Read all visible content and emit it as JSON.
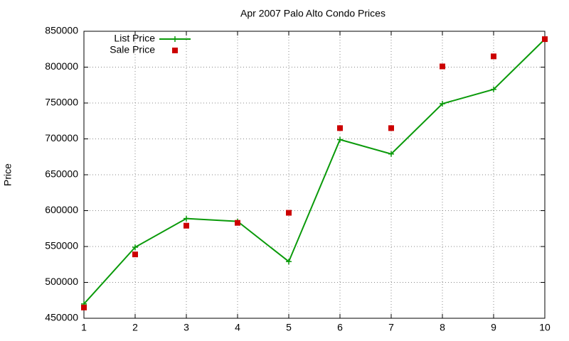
{
  "chart_data": {
    "type": "line",
    "title": "Apr 2007 Palo Alto Condo Prices",
    "y_label": "Price",
    "x": [
      1,
      2,
      3,
      4,
      5,
      6,
      7,
      8,
      9,
      10
    ],
    "series": [
      {
        "name": "List Price",
        "color": "#0a9a0a",
        "mode": "lines+markers",
        "marker": "plus",
        "values": [
          470000,
          549000,
          589000,
          585000,
          529000,
          699000,
          679000,
          749000,
          769000,
          839000
        ]
      },
      {
        "name": "Sale Price",
        "color": "#cc0000",
        "mode": "markers",
        "marker": "square",
        "values": [
          465000,
          539000,
          579000,
          583000,
          597000,
          715000,
          715000,
          801000,
          815000,
          839000
        ]
      }
    ],
    "xlim": [
      1,
      10
    ],
    "xticks": [
      1,
      2,
      3,
      4,
      5,
      6,
      7,
      8,
      9,
      10
    ],
    "ylim": [
      450000,
      850000
    ],
    "yticks": [
      450000,
      500000,
      550000,
      600000,
      650000,
      700000,
      750000,
      800000,
      850000
    ],
    "grid": true,
    "legend": "top-left"
  }
}
